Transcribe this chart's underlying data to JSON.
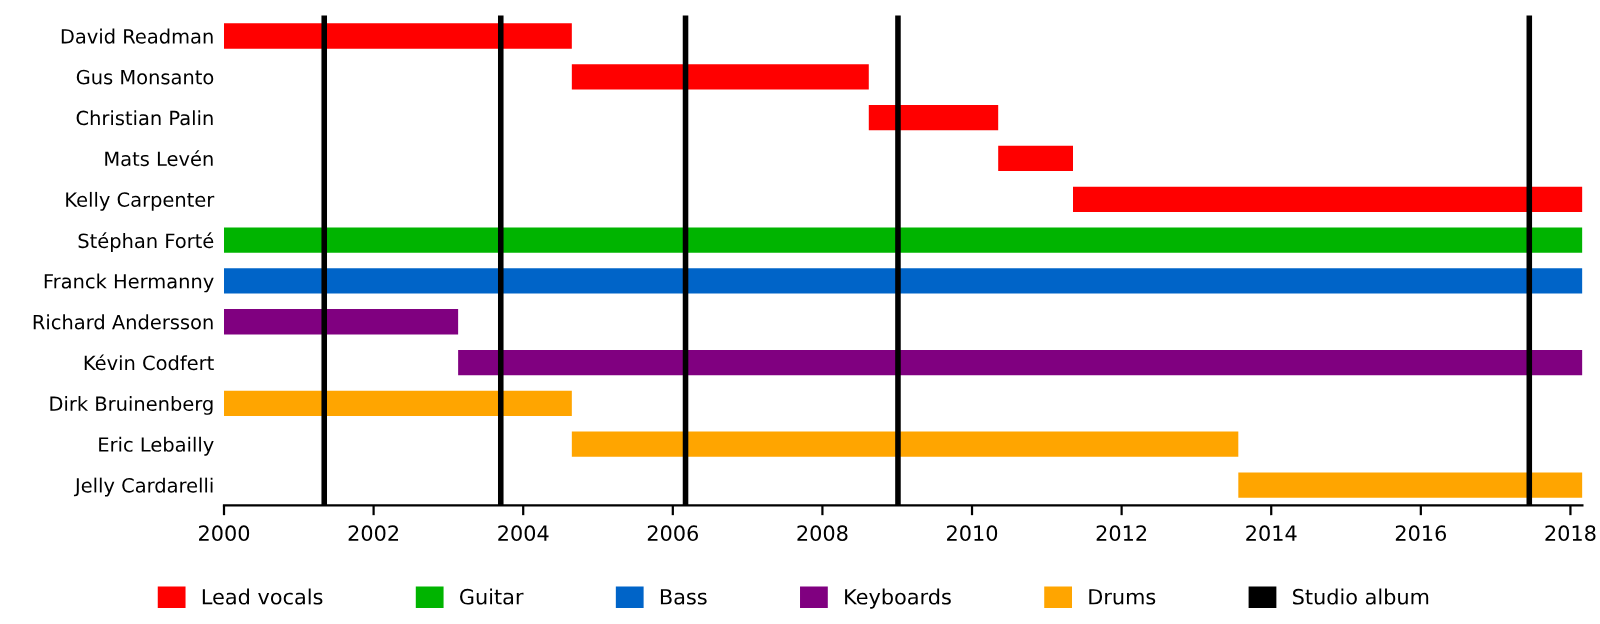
{
  "chart_data": {
    "type": "bar",
    "orientation": "horizontal",
    "categories": [
      "David Readman",
      "Gus Monsanto",
      "Christian Palin",
      "Mats Levén",
      "Kelly Carpenter",
      "Stéphan Forté",
      "Franck Hermanny",
      "Richard Andersson",
      "Kévin Codfert",
      "Dirk Bruinenberg",
      "Eric Lebailly",
      "Jelly Cardarelli"
    ],
    "series": [
      {
        "name": "Lead vocals",
        "color": "#ff0000",
        "values": [
          4.65,
          3.97,
          1.73,
          1.0,
          6.81,
          null,
          null,
          null,
          null,
          null,
          null,
          null
        ],
        "base": [
          2000,
          2004.65,
          2008.62,
          2010.35,
          2011.35,
          null,
          null,
          null,
          null,
          null,
          null,
          null
        ]
      },
      {
        "name": "Guitar",
        "color": "#00b400",
        "values": [
          null,
          null,
          null,
          null,
          null,
          18.16,
          null,
          null,
          null,
          null,
          null,
          null
        ],
        "base": [
          null,
          null,
          null,
          null,
          null,
          2000,
          null,
          null,
          null,
          null,
          null,
          null
        ]
      },
      {
        "name": "Bass",
        "color": "#0064c8",
        "values": [
          null,
          null,
          null,
          null,
          null,
          null,
          18.16,
          null,
          null,
          null,
          null,
          null
        ],
        "base": [
          null,
          null,
          null,
          null,
          null,
          null,
          2000,
          null,
          null,
          null,
          null,
          null
        ]
      },
      {
        "name": "Keyboards",
        "color": "#800080",
        "values": [
          null,
          null,
          null,
          null,
          null,
          null,
          null,
          3.13,
          15.03,
          null,
          null,
          null
        ],
        "base": [
          null,
          null,
          null,
          null,
          null,
          null,
          null,
          2000,
          2003.13,
          null,
          null,
          null
        ]
      },
      {
        "name": "Drums",
        "color": "#ffa500",
        "values": [
          null,
          null,
          null,
          null,
          null,
          null,
          null,
          null,
          null,
          4.65,
          8.91,
          4.6
        ],
        "base": [
          null,
          null,
          null,
          null,
          null,
          null,
          null,
          null,
          null,
          2000,
          2004.65,
          2013.56
        ]
      }
    ],
    "ref_lines": [
      {
        "axis": "x",
        "value": 2001.34,
        "label": "Studio album",
        "color": "#000000"
      },
      {
        "axis": "x",
        "value": 2003.7,
        "color": "#000000"
      },
      {
        "axis": "x",
        "value": 2006.17,
        "color": "#000000"
      },
      {
        "axis": "x",
        "value": 2009.01,
        "color": "#000000"
      },
      {
        "axis": "x",
        "value": 2017.45,
        "color": "#000000"
      }
    ],
    "xlim": [
      2000,
      2018.16
    ],
    "xticks": [
      2000,
      2002,
      2004,
      2006,
      2008,
      2010,
      2012,
      2014,
      2016,
      2018
    ],
    "legend": "bottom"
  }
}
